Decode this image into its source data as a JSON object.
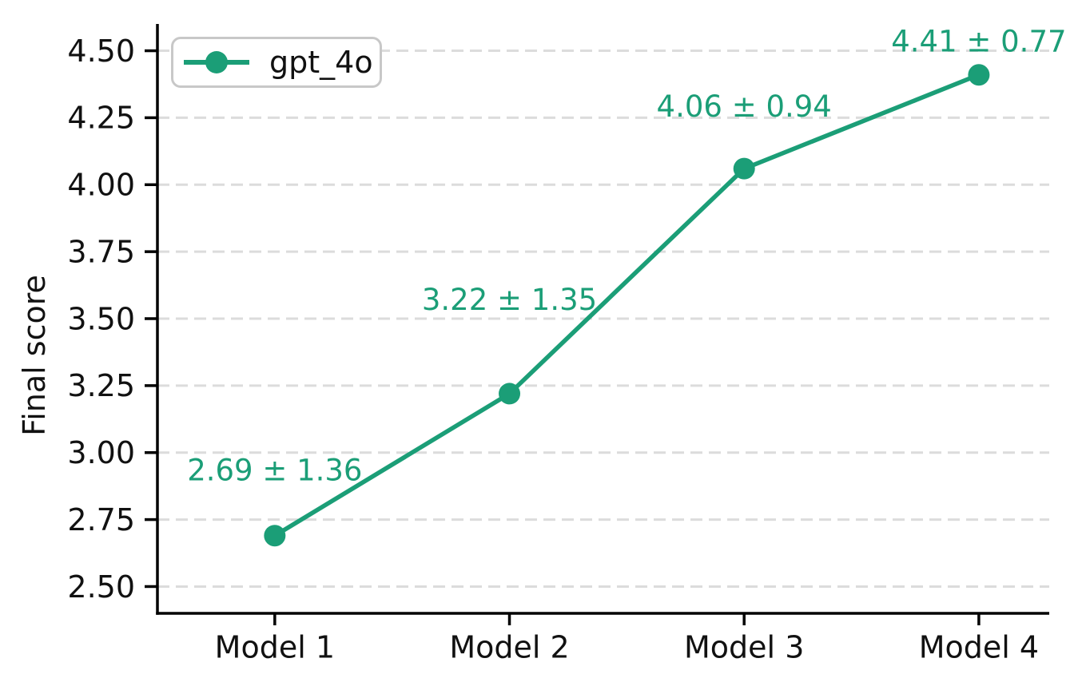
{
  "chart_data": {
    "type": "line",
    "title": "",
    "xlabel": "",
    "ylabel": "Final score",
    "categories": [
      "Model 1",
      "Model 2",
      "Model 3",
      "Model 4"
    ],
    "series": [
      {
        "name": "gpt_4o",
        "color": "#1b9e77",
        "values": [
          2.69,
          3.22,
          4.06,
          4.41
        ],
        "errors": [
          1.36,
          1.35,
          0.94,
          0.77
        ],
        "point_labels": [
          "2.69 ± 1.36",
          "3.22 ± 1.35",
          "4.06 ± 0.94",
          "4.41 ± 0.77"
        ]
      }
    ],
    "yticks": [
      2.5,
      2.75,
      3.0,
      3.25,
      3.5,
      3.75,
      4.0,
      4.25,
      4.5
    ],
    "ytick_labels": [
      "2.50",
      "2.75",
      "3.00",
      "3.25",
      "3.50",
      "3.75",
      "4.00",
      "4.25",
      "4.50"
    ],
    "ylim": [
      2.4,
      4.6
    ],
    "xlim": [
      -0.5,
      3.3
    ],
    "grid": true,
    "grid_axis": "y",
    "grid_style": "dashed",
    "legend": {
      "position": "upper left",
      "entries": [
        "gpt_4o"
      ]
    },
    "colors": {
      "background": "#ffffff",
      "grid": "#dcdcdc",
      "axis": "#000000",
      "tick_label": "#111111",
      "legend_border": "#c8c8c8"
    }
  }
}
